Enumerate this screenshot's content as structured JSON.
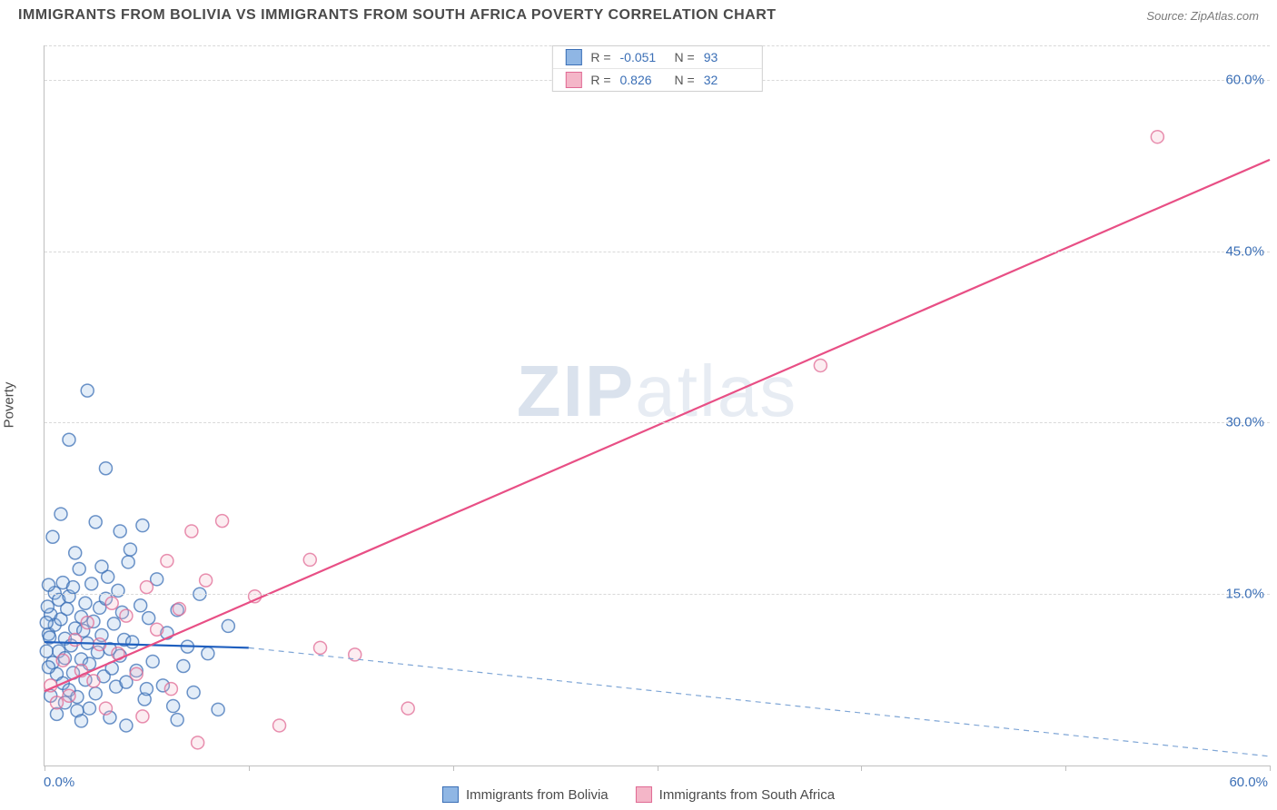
{
  "title": "IMMIGRANTS FROM BOLIVIA VS IMMIGRANTS FROM SOUTH AFRICA POVERTY CORRELATION CHART",
  "source_label": "Source:",
  "source_name": "ZipAtlas.com",
  "watermark_a": "ZIP",
  "watermark_b": "atlas",
  "y_axis_label": "Poverty",
  "chart": {
    "type": "scatter",
    "xlim": [
      0,
      60
    ],
    "ylim": [
      0,
      63
    ],
    "y_ticks": [
      15,
      30,
      45,
      60
    ],
    "y_tick_labels": [
      "15.0%",
      "30.0%",
      "45.0%",
      "60.0%"
    ],
    "x_ticks": [
      0,
      10,
      20,
      30,
      40,
      50,
      60
    ],
    "x_tick_labels": {
      "0": "0.0%",
      "60": "60.0%"
    },
    "grid_color": "#d9d9d9",
    "axis_color": "#bfbfbf",
    "tick_label_color": "#3b6fb6",
    "background_color": "#ffffff",
    "marker_radius": 7,
    "series": [
      {
        "name": "Immigrants from Bolivia",
        "color_fill": "#8fb6e4",
        "color_stroke": "#3b6fb6",
        "R": "-0.051",
        "N": "93",
        "trend_solid": {
          "x1": 0,
          "y1": 10.8,
          "x2": 10,
          "y2": 10.3,
          "color": "#1f5fbf",
          "width": 2.2
        },
        "trend_dash": {
          "x1": 10,
          "y1": 10.3,
          "x2": 60,
          "y2": 0.8,
          "color": "#7fa6d6",
          "width": 1.2,
          "dash": "6,5"
        },
        "points": [
          [
            0.2,
            11.5
          ],
          [
            0.3,
            13.2
          ],
          [
            0.4,
            9.0
          ],
          [
            0.5,
            15.1
          ],
          [
            0.5,
            12.3
          ],
          [
            0.6,
            8.0
          ],
          [
            0.7,
            14.5
          ],
          [
            0.7,
            10.0
          ],
          [
            0.8,
            12.8
          ],
          [
            0.9,
            7.2
          ],
          [
            0.9,
            16.0
          ],
          [
            1.0,
            11.1
          ],
          [
            1.0,
            9.4
          ],
          [
            1.1,
            13.7
          ],
          [
            1.2,
            6.6
          ],
          [
            1.2,
            14.8
          ],
          [
            1.3,
            10.5
          ],
          [
            1.4,
            8.1
          ],
          [
            1.4,
            15.6
          ],
          [
            1.5,
            12.0
          ],
          [
            1.6,
            6.0
          ],
          [
            1.7,
            17.2
          ],
          [
            1.8,
            9.3
          ],
          [
            1.8,
            13.0
          ],
          [
            1.9,
            11.8
          ],
          [
            2.0,
            7.5
          ],
          [
            2.0,
            14.2
          ],
          [
            2.1,
            10.7
          ],
          [
            2.2,
            8.9
          ],
          [
            2.3,
            15.9
          ],
          [
            2.4,
            12.6
          ],
          [
            2.5,
            6.3
          ],
          [
            2.6,
            9.9
          ],
          [
            2.7,
            13.8
          ],
          [
            2.8,
            11.4
          ],
          [
            2.9,
            7.8
          ],
          [
            3.0,
            14.6
          ],
          [
            3.1,
            16.5
          ],
          [
            3.2,
            10.2
          ],
          [
            3.3,
            8.5
          ],
          [
            3.4,
            12.4
          ],
          [
            3.5,
            6.9
          ],
          [
            3.6,
            15.3
          ],
          [
            3.7,
            9.6
          ],
          [
            3.8,
            13.4
          ],
          [
            3.9,
            11.0
          ],
          [
            4.0,
            7.3
          ],
          [
            4.1,
            17.8
          ],
          [
            4.3,
            10.8
          ],
          [
            4.5,
            8.3
          ],
          [
            4.7,
            14.0
          ],
          [
            4.9,
            5.8
          ],
          [
            5.1,
            12.9
          ],
          [
            5.3,
            9.1
          ],
          [
            5.5,
            16.3
          ],
          [
            5.8,
            7.0
          ],
          [
            6.0,
            11.6
          ],
          [
            6.3,
            5.2
          ],
          [
            6.5,
            13.6
          ],
          [
            6.8,
            8.7
          ],
          [
            7.0,
            10.4
          ],
          [
            7.3,
            6.4
          ],
          [
            7.6,
            15.0
          ],
          [
            8.0,
            9.8
          ],
          [
            8.5,
            4.9
          ],
          [
            9.0,
            12.2
          ],
          [
            1.2,
            28.5
          ],
          [
            2.1,
            32.8
          ],
          [
            3.0,
            26.0
          ],
          [
            0.8,
            22.0
          ],
          [
            2.5,
            21.3
          ],
          [
            3.7,
            20.5
          ],
          [
            4.8,
            21.0
          ],
          [
            1.5,
            18.6
          ],
          [
            2.8,
            17.4
          ],
          [
            4.2,
            18.9
          ],
          [
            0.4,
            20.0
          ],
          [
            1.0,
            5.5
          ],
          [
            1.6,
            4.8
          ],
          [
            2.2,
            5.0
          ],
          [
            0.3,
            6.1
          ],
          [
            0.6,
            4.5
          ],
          [
            1.8,
            3.9
          ],
          [
            3.2,
            4.2
          ],
          [
            4.0,
            3.5
          ],
          [
            5.0,
            6.7
          ],
          [
            6.5,
            4.0
          ],
          [
            0.2,
            8.6
          ],
          [
            0.1,
            12.5
          ],
          [
            0.1,
            10.0
          ],
          [
            0.2,
            15.8
          ],
          [
            0.15,
            13.9
          ],
          [
            0.25,
            11.2
          ]
        ]
      },
      {
        "name": "Immigrants from South Africa",
        "color_fill": "#f4b6c8",
        "color_stroke": "#e06a94",
        "R": "0.826",
        "N": "32",
        "trend_solid": {
          "x1": 0,
          "y1": 6.5,
          "x2": 60,
          "y2": 53.0,
          "color": "#e84f85",
          "width": 2.2
        },
        "points": [
          [
            0.3,
            7.0
          ],
          [
            0.6,
            5.5
          ],
          [
            0.9,
            9.2
          ],
          [
            1.2,
            6.1
          ],
          [
            1.5,
            11.0
          ],
          [
            1.8,
            8.3
          ],
          [
            2.1,
            12.5
          ],
          [
            2.4,
            7.4
          ],
          [
            2.7,
            10.6
          ],
          [
            3.0,
            5.0
          ],
          [
            3.3,
            14.2
          ],
          [
            3.6,
            9.8
          ],
          [
            4.0,
            13.1
          ],
          [
            4.5,
            8.0
          ],
          [
            5.0,
            15.6
          ],
          [
            5.5,
            11.9
          ],
          [
            6.0,
            17.9
          ],
          [
            6.6,
            13.7
          ],
          [
            7.2,
            20.5
          ],
          [
            7.9,
            16.2
          ],
          [
            8.7,
            21.4
          ],
          [
            7.5,
            2.0
          ],
          [
            10.3,
            14.8
          ],
          [
            11.5,
            3.5
          ],
          [
            13.0,
            18.0
          ],
          [
            15.2,
            9.7
          ],
          [
            17.8,
            5.0
          ],
          [
            13.5,
            10.3
          ],
          [
            38.0,
            35.0
          ],
          [
            54.5,
            55.0
          ],
          [
            4.8,
            4.3
          ],
          [
            6.2,
            6.7
          ]
        ]
      }
    ]
  }
}
